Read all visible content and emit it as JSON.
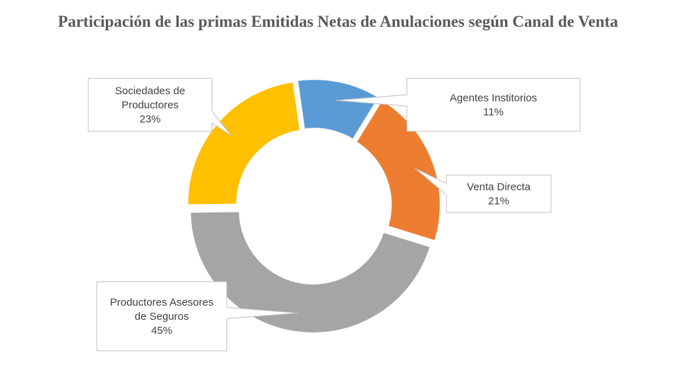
{
  "title": "Participación de las primas Emitidas Netas de Anulaciones según Canal de Venta",
  "chart_data": {
    "type": "pie",
    "variant": "doughnut",
    "title": "Participación de las primas Emitidas Netas de Anulaciones según Canal de Venta",
    "categories": [
      "Agentes Institorios",
      "Venta Directa",
      "Productores Asesores de Seguros",
      "Sociedades de Productores"
    ],
    "values": [
      11,
      21,
      45,
      23
    ],
    "unit": "%",
    "colors": [
      "#5B9BD5",
      "#ED7D31",
      "#A5A5A5",
      "#FFC000"
    ],
    "legend": "none",
    "data_labels": [
      {
        "lines": [
          "Agentes Institorios",
          "11%"
        ]
      },
      {
        "lines": [
          "Venta Directa",
          "21%"
        ]
      },
      {
        "lines": [
          "Productores Asesores",
          "de Seguros",
          "45%"
        ]
      },
      {
        "lines": [
          "Sociedades de",
          "Productores",
          "23%"
        ]
      }
    ]
  }
}
